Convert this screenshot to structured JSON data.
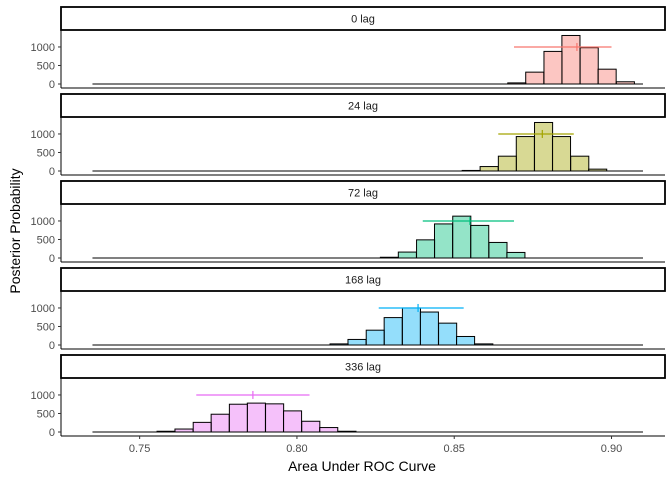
{
  "chart_data": {
    "type": "histogram",
    "xlabel": "Area Under ROC Curve",
    "ylabel": "Posterior Probability",
    "xlim": [
      0.725,
      0.917
    ],
    "x_ticks": [
      0.75,
      0.8,
      0.85,
      0.9
    ],
    "x_tick_labels": [
      "0.75",
      "0.80",
      "0.85",
      "0.90"
    ],
    "ylim": [
      0,
      1350
    ],
    "y_ticks": [
      0,
      500,
      1000
    ],
    "y_tick_labels": [
      "0",
      "500",
      "1000"
    ],
    "bin_width": 0.00575,
    "baseline_range": [
      0.735,
      0.91
    ],
    "legend": "none",
    "grid": false,
    "panels": [
      {
        "label": "0 lag",
        "color": "#F8766D",
        "bins": [
          {
            "x": 0.8699,
            "count": 30
          },
          {
            "x": 0.8756,
            "count": 320
          },
          {
            "x": 0.8814,
            "count": 880
          },
          {
            "x": 0.8871,
            "count": 1310
          },
          {
            "x": 0.8929,
            "count": 980
          },
          {
            "x": 0.8986,
            "count": 400
          },
          {
            "x": 0.9044,
            "count": 60
          }
        ],
        "mean": 0.889,
        "interval": [
          0.869,
          0.9
        ]
      },
      {
        "label": "24 lag",
        "color": "#A3A500",
        "bins": [
          {
            "x": 0.8554,
            "count": 15
          },
          {
            "x": 0.8611,
            "count": 120
          },
          {
            "x": 0.8669,
            "count": 400
          },
          {
            "x": 0.8726,
            "count": 930
          },
          {
            "x": 0.8784,
            "count": 1310
          },
          {
            "x": 0.8841,
            "count": 930
          },
          {
            "x": 0.8899,
            "count": 400
          },
          {
            "x": 0.8956,
            "count": 50
          }
        ],
        "mean": 0.878,
        "interval": [
          0.864,
          0.888
        ]
      },
      {
        "label": "72 lag",
        "color": "#00BF7D",
        "bins": [
          {
            "x": 0.8294,
            "count": 20
          },
          {
            "x": 0.8351,
            "count": 160
          },
          {
            "x": 0.8409,
            "count": 490
          },
          {
            "x": 0.8466,
            "count": 920
          },
          {
            "x": 0.8524,
            "count": 1130
          },
          {
            "x": 0.8581,
            "count": 880
          },
          {
            "x": 0.8639,
            "count": 420
          },
          {
            "x": 0.8696,
            "count": 150
          }
        ],
        "mean": 0.855,
        "interval": [
          0.84,
          0.869
        ]
      },
      {
        "label": "168 lag",
        "color": "#00B0F6",
        "bins": [
          {
            "x": 0.8134,
            "count": 30
          },
          {
            "x": 0.8191,
            "count": 150
          },
          {
            "x": 0.8249,
            "count": 400
          },
          {
            "x": 0.8306,
            "count": 740
          },
          {
            "x": 0.8364,
            "count": 1000
          },
          {
            "x": 0.8421,
            "count": 890
          },
          {
            "x": 0.8479,
            "count": 590
          },
          {
            "x": 0.8536,
            "count": 230
          },
          {
            "x": 0.8594,
            "count": 30
          }
        ],
        "mean": 0.8385,
        "interval": [
          0.826,
          0.853
        ]
      },
      {
        "label": "336 lag",
        "color": "#E76BF3",
        "bins": [
          {
            "x": 0.7584,
            "count": 20
          },
          {
            "x": 0.7641,
            "count": 80
          },
          {
            "x": 0.7699,
            "count": 260
          },
          {
            "x": 0.7756,
            "count": 480
          },
          {
            "x": 0.7814,
            "count": 750
          },
          {
            "x": 0.7871,
            "count": 780
          },
          {
            "x": 0.7929,
            "count": 760
          },
          {
            "x": 0.7986,
            "count": 570
          },
          {
            "x": 0.8044,
            "count": 290
          },
          {
            "x": 0.8101,
            "count": 120
          },
          {
            "x": 0.8159,
            "count": 20
          }
        ],
        "mean": 0.786,
        "interval": [
          0.768,
          0.804
        ]
      }
    ]
  }
}
